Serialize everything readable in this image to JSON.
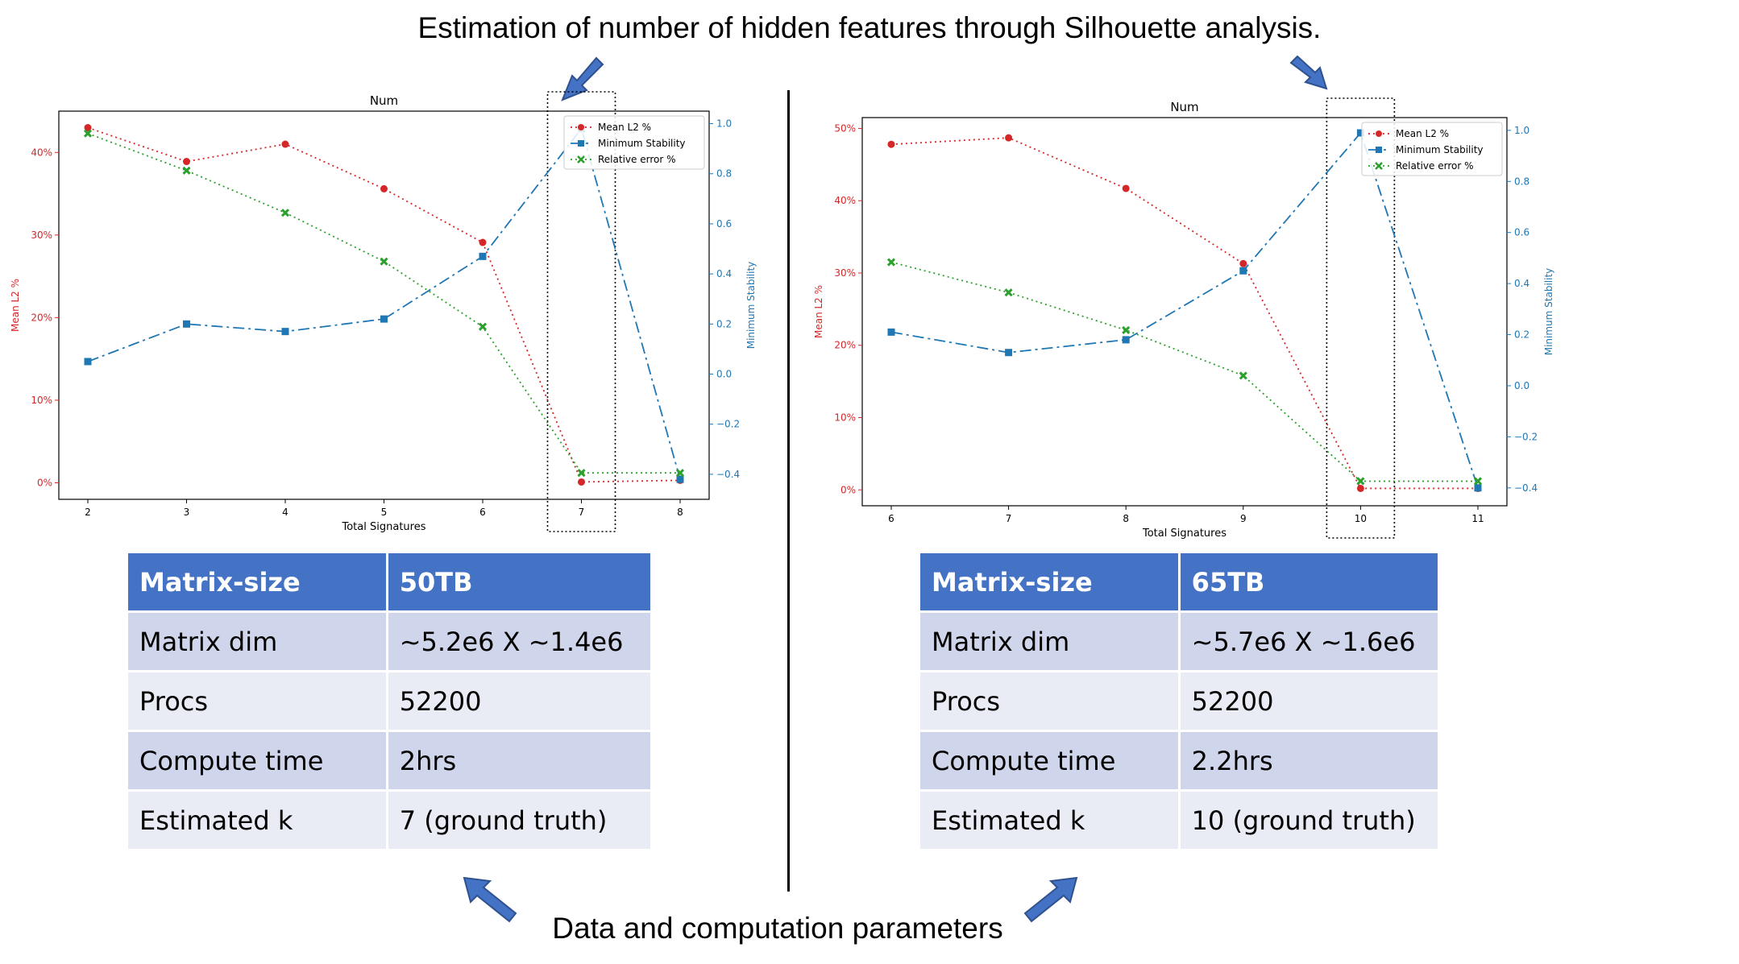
{
  "headline": "Estimation of number of hidden features through Silhouette analysis.",
  "footline": "Data and computation parameters",
  "colors": {
    "mean_l2": "#d62728",
    "stability": "#1f77b4",
    "rel_error": "#2ca02c",
    "table_header": "#4472C4",
    "table_row_odd": "#CFD5EA",
    "table_row_even": "#E9EBF5"
  },
  "icons": [
    "arrow-down-left-icon",
    "arrow-down-right-icon",
    "arrow-up-left-icon",
    "arrow-up-right-icon"
  ],
  "chart_data": [
    {
      "type": "line",
      "title": "Num",
      "xlabel": "Total Signatures",
      "ylabel_left": "Mean L2 %",
      "ylabel_right": "Minimum Stability",
      "x": [
        2,
        3,
        4,
        5,
        6,
        7,
        8
      ],
      "x_ticks": [
        "2",
        "3",
        "4",
        "5",
        "6",
        "7",
        "8"
      ],
      "ylim_left": [
        -2,
        45
      ],
      "y_ticks_left": [
        "0%",
        "10%",
        "20%",
        "30%",
        "40%"
      ],
      "ylim_right": [
        -0.5,
        1.05
      ],
      "y_ticks_right": [
        "−0.4",
        "−0.2",
        "0.0",
        "0.2",
        "0.4",
        "0.6",
        "0.8",
        "1.0"
      ],
      "legend_position": "top-right",
      "highlight_x": 7,
      "grid": false,
      "series": [
        {
          "name": "Mean L2 %",
          "axis": "left",
          "marker": "circle",
          "values": [
            43.0,
            38.9,
            41.0,
            35.6,
            29.1,
            0.1,
            0.3
          ]
        },
        {
          "name": "Minimum Stability",
          "axis": "right",
          "marker": "square",
          "values": [
            0.05,
            0.2,
            0.17,
            0.22,
            0.47,
            0.98,
            -0.42
          ]
        },
        {
          "name": "Relative error %",
          "axis": "left",
          "marker": "x",
          "values": [
            42.3,
            37.8,
            32.7,
            26.8,
            18.9,
            1.2,
            1.2
          ]
        }
      ]
    },
    {
      "type": "line",
      "title": "Num",
      "xlabel": "Total Signatures",
      "ylabel_left": "Mean L2 %",
      "ylabel_right": "Minimum Stability",
      "x": [
        6,
        7,
        8,
        9,
        10,
        11
      ],
      "x_ticks": [
        "6",
        "7",
        "8",
        "9",
        "10",
        "11"
      ],
      "ylim_left": [
        -2.2,
        51.5
      ],
      "y_ticks_left": [
        "0%",
        "10%",
        "20%",
        "30%",
        "40%",
        "50%"
      ],
      "ylim_right": [
        -0.47,
        1.05
      ],
      "y_ticks_right": [
        "−0.4",
        "−0.2",
        "0.0",
        "0.2",
        "0.4",
        "0.6",
        "0.8",
        "1.0"
      ],
      "legend_position": "top-right",
      "highlight_x": 10,
      "grid": false,
      "series": [
        {
          "name": "Mean L2 %",
          "axis": "left",
          "marker": "circle",
          "values": [
            47.8,
            48.7,
            41.7,
            31.3,
            0.2,
            0.2
          ]
        },
        {
          "name": "Minimum Stability",
          "axis": "right",
          "marker": "square",
          "values": [
            0.21,
            0.13,
            0.18,
            0.45,
            0.99,
            -0.4
          ]
        },
        {
          "name": "Relative error %",
          "axis": "left",
          "marker": "x",
          "values": [
            31.5,
            27.3,
            22.1,
            15.8,
            1.2,
            1.2
          ]
        }
      ]
    }
  ],
  "tables": [
    {
      "header": [
        "Matrix-size",
        "50TB"
      ],
      "rows": [
        [
          "Matrix dim",
          "~5.2e6 X ~1.4e6"
        ],
        [
          "Procs",
          "52200"
        ],
        [
          "Compute time",
          "2hrs"
        ],
        [
          "Estimated k",
          "7 (ground truth)"
        ]
      ]
    },
    {
      "header": [
        "Matrix-size",
        "65TB"
      ],
      "rows": [
        [
          "Matrix dim",
          "~5.7e6 X ~1.6e6"
        ],
        [
          "Procs",
          "52200"
        ],
        [
          "Compute time",
          "2.2hrs"
        ],
        [
          "Estimated k",
          "10 (ground truth)"
        ]
      ]
    }
  ]
}
